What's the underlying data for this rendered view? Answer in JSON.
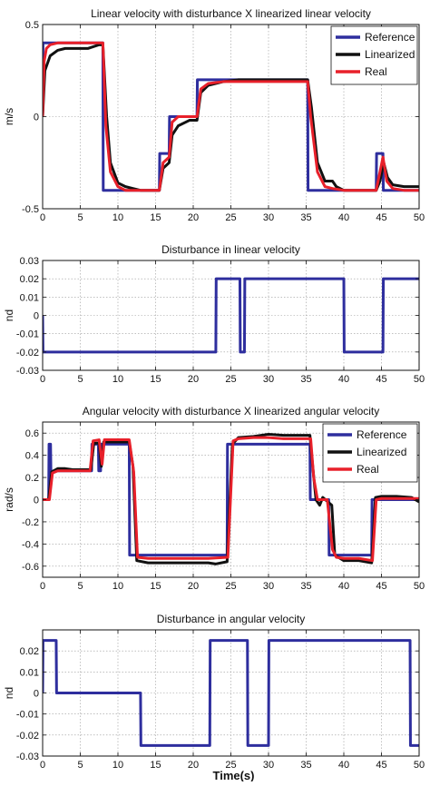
{
  "figure": {
    "xlabel": "Time(s)"
  },
  "chart_data": [
    {
      "type": "line",
      "title": "Linear velocity with disturbance X linearized linear velocity",
      "ylabel": "m/s",
      "xlabel": "",
      "xlim": [
        0,
        50
      ],
      "ylim": [
        -0.5,
        0.5
      ],
      "xticks": [
        0,
        5,
        10,
        15,
        20,
        25,
        30,
        35,
        40,
        45,
        50
      ],
      "yticks": [
        -0.5,
        0,
        0.5
      ],
      "grid": true,
      "legend": {
        "position": "top-right",
        "entries": [
          "Reference",
          "Linearized",
          "Real"
        ]
      },
      "series": [
        {
          "name": "Reference",
          "color": "#2e2e9e",
          "x": [
            0,
            0.05,
            8,
            8.05,
            15.5,
            15.55,
            16.8,
            16.85,
            20.5,
            20.55,
            35.2,
            35.25,
            44.3,
            44.35,
            45.2,
            45.25,
            50
          ],
          "y": [
            0,
            0.4,
            0.4,
            -0.4,
            -0.4,
            -0.2,
            -0.2,
            0,
            0,
            0.2,
            0.2,
            -0.4,
            -0.4,
            -0.2,
            -0.2,
            -0.4,
            -0.4
          ]
        },
        {
          "name": "Linearized",
          "color": "#111111",
          "x": [
            0,
            0.3,
            1,
            2,
            3,
            4,
            6,
            7.5,
            8,
            8.5,
            9,
            10,
            11,
            12,
            13,
            15.5,
            16,
            16.8,
            17.2,
            18,
            19.5,
            20.5,
            21,
            22,
            24,
            26,
            30,
            33,
            35.2,
            35.7,
            36.5,
            37.5,
            38.5,
            39,
            40,
            42,
            44.3,
            44.8,
            45.3,
            45.8,
            46.5,
            48,
            50
          ],
          "y": [
            0,
            0.25,
            0.33,
            0.36,
            0.37,
            0.37,
            0.37,
            0.39,
            0.39,
            0.0,
            -0.25,
            -0.36,
            -0.38,
            -0.39,
            -0.4,
            -0.4,
            -0.28,
            -0.25,
            -0.1,
            -0.05,
            -0.02,
            -0.02,
            0.13,
            0.17,
            0.19,
            0.2,
            0.2,
            0.2,
            0.2,
            0.05,
            -0.25,
            -0.35,
            -0.35,
            -0.38,
            -0.4,
            -0.4,
            -0.4,
            -0.35,
            -0.25,
            -0.33,
            -0.37,
            -0.38,
            -0.38
          ]
        },
        {
          "name": "Real",
          "color": "#e8202a",
          "x": [
            0,
            0.2,
            0.5,
            1,
            2,
            3,
            5,
            7.5,
            8,
            8.4,
            9,
            10,
            11,
            12,
            15.5,
            16,
            16.8,
            17.2,
            18,
            20.5,
            21,
            22,
            24,
            26,
            30,
            35.2,
            35.6,
            36.5,
            37.5,
            38.5,
            40,
            44.3,
            44.8,
            45.2,
            45.7,
            46.5,
            48,
            50
          ],
          "y": [
            0,
            0.3,
            0.37,
            0.39,
            0.4,
            0.4,
            0.4,
            0.4,
            0.4,
            -0.05,
            -0.3,
            -0.38,
            -0.4,
            -0.4,
            -0.4,
            -0.25,
            -0.22,
            -0.03,
            0,
            0,
            0.15,
            0.18,
            0.19,
            0.19,
            0.19,
            0.19,
            0.0,
            -0.3,
            -0.38,
            -0.39,
            -0.4,
            -0.4,
            -0.3,
            -0.22,
            -0.35,
            -0.39,
            -0.4,
            -0.4
          ]
        }
      ]
    },
    {
      "type": "line",
      "title": "Disturbance in linear velocity",
      "ylabel": "nd",
      "xlabel": "",
      "xlim": [
        0,
        50
      ],
      "ylim": [
        -0.03,
        0.03
      ],
      "xticks": [
        0,
        5,
        10,
        15,
        20,
        25,
        30,
        35,
        40,
        45,
        50
      ],
      "yticks": [
        -0.03,
        -0.02,
        -0.01,
        0,
        0.01,
        0.02,
        0.03
      ],
      "grid": true,
      "series": [
        {
          "name": "",
          "color": "#2e2e9e",
          "x": [
            0,
            0.05,
            23,
            23.05,
            26.2,
            26.25,
            26.8,
            26.85,
            40,
            40.05,
            45.2,
            45.25,
            50
          ],
          "y": [
            0,
            -0.02,
            -0.02,
            0.02,
            0.02,
            -0.02,
            -0.02,
            0.02,
            0.02,
            -0.02,
            -0.02,
            0.02,
            0.02
          ]
        }
      ]
    },
    {
      "type": "line",
      "title": "Angular velocity with disturbance X linearized angular velocity",
      "ylabel": "rad/s",
      "xlabel": "",
      "xlim": [
        0,
        50
      ],
      "ylim": [
        -0.7,
        0.7
      ],
      "xticks": [
        0,
        5,
        10,
        15,
        20,
        25,
        30,
        35,
        40,
        45,
        50
      ],
      "yticks": [
        -0.6,
        -0.4,
        -0.2,
        0,
        0.2,
        0.4,
        0.6
      ],
      "grid": true,
      "legend": {
        "position": "top-right",
        "entries": [
          "Reference",
          "Linearized",
          "Real"
        ]
      },
      "series": [
        {
          "name": "Reference",
          "color": "#2e2e9e",
          "x": [
            0,
            0.8,
            0.85,
            1.05,
            1.1,
            1.4,
            1.45,
            6.5,
            6.55,
            7.4,
            7.45,
            7.7,
            7.75,
            8.1,
            8.15,
            11.5,
            11.55,
            24.5,
            24.55,
            35.5,
            35.55,
            36.8,
            36.85,
            38,
            38.05,
            43.7,
            43.75,
            50
          ],
          "y": [
            0,
            0,
            0.5,
            0.5,
            0.25,
            0.25,
            0.26,
            0.26,
            0.5,
            0.5,
            0.26,
            0.26,
            0.5,
            0.5,
            0.5,
            0.5,
            -0.5,
            -0.5,
            0.5,
            0.5,
            0,
            0,
            0,
            0,
            -0.5,
            -0.5,
            0,
            0
          ]
        },
        {
          "name": "Linearized",
          "color": "#111111",
          "x": [
            0,
            0.8,
            1.2,
            2,
            3,
            4,
            5.5,
            6.4,
            6.8,
            7.5,
            7.8,
            8.1,
            8.5,
            11.5,
            12,
            12.5,
            14,
            16,
            20,
            22,
            23,
            24.5,
            25.2,
            26,
            28,
            30,
            32,
            35.5,
            35.8,
            36.3,
            36.8,
            37.2,
            38.4,
            38.8,
            40,
            42,
            43.7,
            44.2,
            45,
            47,
            49,
            50
          ],
          "y": [
            0,
            0,
            0.25,
            0.28,
            0.28,
            0.27,
            0.27,
            0.27,
            0.51,
            0.51,
            0.3,
            0.52,
            0.52,
            0.52,
            0.3,
            -0.55,
            -0.57,
            -0.57,
            -0.57,
            -0.57,
            -0.58,
            -0.56,
            0.5,
            0.56,
            0.57,
            0.59,
            0.58,
            0.58,
            0.35,
            0.0,
            -0.05,
            0.02,
            -0.05,
            -0.5,
            -0.55,
            -0.55,
            -0.57,
            0.02,
            0.03,
            0.03,
            0.02,
            -0.02
          ]
        },
        {
          "name": "Real",
          "color": "#e8202a",
          "x": [
            0,
            0.9,
            1.3,
            2,
            3,
            4,
            5.5,
            6.3,
            6.7,
            7.5,
            7.9,
            8.2,
            9,
            11.5,
            12.1,
            12.6,
            14,
            16,
            20,
            22,
            24.6,
            25.3,
            26,
            28,
            30,
            32,
            35.6,
            36,
            36.5,
            37.8,
            38.5,
            39,
            40,
            42,
            43.8,
            44.3,
            45,
            47,
            49,
            50
          ],
          "y": [
            0,
            0,
            0.24,
            0.26,
            0.26,
            0.26,
            0.26,
            0.26,
            0.53,
            0.54,
            0.32,
            0.54,
            0.54,
            0.54,
            0.25,
            -0.52,
            -0.53,
            -0.53,
            -0.53,
            -0.53,
            -0.52,
            0.53,
            0.55,
            0.56,
            0.56,
            0.55,
            0.55,
            0.2,
            0.0,
            0.0,
            -0.45,
            -0.52,
            -0.53,
            -0.53,
            -0.55,
            0.0,
            0.01,
            0.01,
            0.01,
            0.01
          ]
        }
      ]
    },
    {
      "type": "line",
      "title": "Disturbance in angular velocity",
      "ylabel": "nd",
      "xlabel": "Time(s)",
      "xlim": [
        0,
        50
      ],
      "ylim": [
        -0.03,
        0.03
      ],
      "xticks": [
        0,
        5,
        10,
        15,
        20,
        25,
        30,
        35,
        40,
        45,
        50
      ],
      "yticks": [
        -0.03,
        -0.02,
        -0.01,
        0,
        0.01,
        0.02
      ],
      "grid": true,
      "series": [
        {
          "name": "",
          "color": "#2e2e9e",
          "x": [
            0,
            0.05,
            1.8,
            1.85,
            13,
            13.05,
            22.2,
            22.25,
            27.2,
            27.25,
            30,
            30.05,
            48.8,
            48.85,
            50
          ],
          "y": [
            0,
            0.025,
            0.025,
            0,
            0,
            -0.025,
            -0.025,
            0.025,
            0.025,
            -0.025,
            -0.025,
            0.025,
            0.025,
            -0.025,
            -0.025
          ]
        }
      ]
    }
  ]
}
